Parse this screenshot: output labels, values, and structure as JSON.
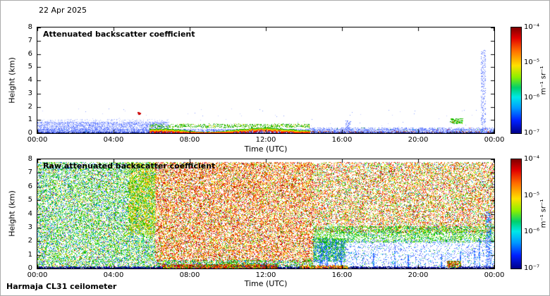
{
  "meta": {
    "date_label": "22 Apr 2025",
    "footer_label": "Harmaja CL31 ceilometer"
  },
  "colors": {
    "background": "#ffffff",
    "axis": "#000000",
    "jet_stops": [
      [
        "#7f0000",
        0
      ],
      [
        "#e10000",
        10
      ],
      [
        "#ff6d00",
        22
      ],
      [
        "#ffe000",
        36
      ],
      [
        "#8cf000",
        47
      ],
      [
        "#00d06c",
        57
      ],
      [
        "#00e8e8",
        66
      ],
      [
        "#009cff",
        76
      ],
      [
        "#0020ff",
        88
      ],
      [
        "#000089",
        100
      ]
    ]
  },
  "chart_data": [
    {
      "type": "heatmap",
      "title": "Attenuated backscatter coefficient",
      "xlabel": "Time (UTC)",
      "ylabel": "Height (km)",
      "x_ticks": [
        "00:00",
        "04:00",
        "08:00",
        "12:00",
        "16:00",
        "20:00",
        "00:00"
      ],
      "y_ticks": [
        "0",
        "1",
        "2",
        "3",
        "4",
        "5",
        "6",
        "7",
        "8"
      ],
      "x_range_hours": [
        0,
        24
      ],
      "y_range_km": [
        0,
        8
      ],
      "colorbar": {
        "ticks": [
          "10⁻⁴",
          "10⁻⁵",
          "10⁻⁶",
          "10⁻⁷"
        ],
        "unit": "m⁻¹ sr⁻¹",
        "scale": "log",
        "range": [
          "1e-7",
          "1e-4"
        ]
      },
      "features": [
        "Shallow aerosol layer below ~0.5 km all day (backscatter ~1e-6, blue)",
        "Deeper boundary-layer signal up to ~1 km from 00:00 to ~07:00",
        "Strong low cloud/fog layer at 0.2-0.5 km from ~06:00 to ~14:00 (~1e-4, red/yellow with green top)",
        "Isolated strong echo at ~1.5 km near 05:20",
        "Small cloud echo at ~1 km near 22:00 (green)",
        "Narrow vertical echo column up to ~6 km near 23:30 (blue)"
      ],
      "seed": 11,
      "render": {
        "layers": [
          {
            "type": "scatter",
            "x": [
              0,
              24
            ],
            "y": [
              0,
              0.32
            ],
            "count": 5200,
            "size": 1,
            "colors": [
              [
                "#4e6bff",
                3
              ],
              [
                "#7e93ff",
                3
              ],
              [
                "#b7c3ff",
                2.5
              ],
              [
                "#e2e8ff",
                1.5
              ],
              [
                "#28c8e8",
                0.25
              ]
            ]
          },
          {
            "type": "scatter",
            "x": [
              0,
              6.9
            ],
            "y": [
              0,
              0.85
            ],
            "count": 2600,
            "size": 1,
            "colors": [
              [
                "#5571ff",
                2.5
              ],
              [
                "#8ea1ff",
                2.5
              ],
              [
                "#c5cfff",
                2
              ]
            ]
          },
          {
            "type": "scatter",
            "x": [
              0,
              6.9
            ],
            "y": [
              0.5,
              1.05
            ],
            "count": 520,
            "size": 1,
            "colors": [
              [
                "#9fb0ff",
                1
              ],
              [
                "#d4dcff",
                1.2
              ]
            ]
          },
          {
            "type": "scatter",
            "x": [
              0,
              24
            ],
            "y": [
              0,
              0.07
            ],
            "count": 1700,
            "size": 1,
            "colors": [
              [
                "#1a2a9e",
                2
              ],
              [
                "#3347c4",
                1.5
              ],
              [
                "#000f5e",
                1
              ]
            ]
          },
          {
            "type": "cloudband",
            "x": [
              5.9,
              14.3
            ],
            "y_base": 0.16,
            "y_amp": 0.28,
            "thickness": 0.26,
            "band_colors": [
              "#00a800",
              "#7fd400",
              "#ffd800",
              "#ff7800",
              "#e00000"
            ]
          },
          {
            "type": "scatter",
            "x": [
              5.9,
              14.3
            ],
            "y": [
              0.42,
              0.7
            ],
            "count": 650,
            "size": 1,
            "colors": [
              [
                "#00a800",
                2
              ],
              [
                "#66cc00",
                1.5
              ],
              [
                "#ffd800",
                0.3
              ]
            ]
          },
          {
            "type": "scatter",
            "x": [
              14.3,
              24
            ],
            "y": [
              0.08,
              0.42
            ],
            "count": 820,
            "size": 1,
            "colors": [
              [
                "#4e6bff",
                2
              ],
              [
                "#8ea1ff",
                2
              ],
              [
                "#c5cfff",
                1.5
              ],
              [
                "#00a800",
                0.15
              ],
              [
                "#e00000",
                0.1
              ]
            ]
          },
          {
            "type": "scatter",
            "x": [
              14,
              24
            ],
            "y": [
              0.04,
              0.14
            ],
            "count": 130,
            "size": 1,
            "colors": [
              [
                "#c03000",
                1
              ],
              [
                "#7a2000",
                1
              ]
            ]
          },
          {
            "type": "scatter",
            "x": [
              5.25,
              5.45
            ],
            "y": [
              1.42,
              1.6
            ],
            "count": 10,
            "size": 2,
            "colors": [
              [
                "#cc0000",
                1
              ]
            ]
          },
          {
            "type": "scatter",
            "x": [
              21.7,
              22.35
            ],
            "y": [
              0.72,
              1.12
            ],
            "count": 150,
            "size": 1,
            "colors": [
              [
                "#00b400",
                3
              ],
              [
                "#66d800",
                2
              ],
              [
                "#ff5000",
                0.35
              ],
              [
                "#00d8d8",
                0.4
              ]
            ]
          },
          {
            "type": "scatter",
            "x": [
              23.3,
              23.55
            ],
            "y": [
              0,
              6.3
            ],
            "count": 300,
            "size": 1,
            "colors": [
              [
                "#4e6bff",
                2
              ],
              [
                "#7e93ff",
                2
              ],
              [
                "#b7c3ff",
                1.5
              ]
            ]
          },
          {
            "type": "scatter",
            "x": [
              16.2,
              16.45
            ],
            "y": [
              0,
              0.95
            ],
            "count": 70,
            "size": 1,
            "colors": [
              [
                "#4e6bff",
                2
              ],
              [
                "#8ea1ff",
                1.5
              ]
            ]
          },
          {
            "type": "scatter",
            "x": [
              0,
              24
            ],
            "y": [
              0.4,
              1.9
            ],
            "count": 70,
            "size": 1,
            "colors": [
              [
                "#8ea1ff",
                2
              ],
              [
                "#c5cfff",
                2
              ]
            ]
          }
        ]
      }
    },
    {
      "type": "heatmap",
      "title": "Raw attenuated backscatter coefficient",
      "xlabel": "Time (UTC)",
      "ylabel": "Height (km)",
      "x_ticks": [
        "00:00",
        "04:00",
        "08:00",
        "12:00",
        "16:00",
        "20:00",
        "00:00"
      ],
      "y_ticks": [
        "0",
        "1",
        "2",
        "3",
        "4",
        "5",
        "6",
        "7",
        "8"
      ],
      "x_range_hours": [
        0,
        24
      ],
      "y_range_km": [
        0,
        8
      ],
      "colorbar": {
        "ticks": [
          "10⁻⁴",
          "10⁻⁵",
          "10⁻⁶",
          "10⁻⁷"
        ],
        "unit": "m⁻¹ sr⁻¹",
        "scale": "log",
        "range": [
          "1e-7",
          "1e-4"
        ]
      },
      "features": [
        "Raw signal dominated by background noise over the whole height range",
        "Green/blue noise at all heights from 00:00 to ~06:00",
        "Strong red/orange noise (>=1e-5) from ~06:00 to ~14:00 above ~0.5 km",
        "Red/orange noise above ~2.5 km with green transition band from ~14:00 to 24:00",
        "Low-noise white region below ~2 km from ~14:00 to 24:00 with sparse blue speckles and thin vertical streaks",
        "Persistent dark-blue surface return line near 0 km; strong multicolour surface returns ~06:30-12:30",
        "Small strong echo near 22:00 below ~0.5 km"
      ],
      "seed": 99,
      "render": {
        "layers": [
          {
            "type": "scatter",
            "x": [
              0,
              6.2
            ],
            "y": [
              0,
              7.78
            ],
            "count": 15500,
            "size": 1,
            "colors": [
              [
                "#00b400",
                3
              ],
              [
                "#35d400",
                2
              ],
              [
                "#00d8b0",
                1.2
              ],
              [
                "#2e52ff",
                1.6
              ],
              [
                "#7fe000",
                1.2
              ],
              [
                "#ffe000",
                1
              ],
              [
                "#ff8c00",
                0.5
              ],
              [
                "#e00000",
                0.35
              ],
              [
                "#009cff",
                0.8
              ]
            ]
          },
          {
            "type": "scatter",
            "x": [
              4.8,
              6.2
            ],
            "y": [
              2.5,
              7.78
            ],
            "count": 2300,
            "size": 1,
            "colors": [
              [
                "#ffe000",
                1.5
              ],
              [
                "#ff8c00",
                1
              ],
              [
                "#7fe000",
                1.5
              ],
              [
                "#00b400",
                1
              ]
            ]
          },
          {
            "type": "scatter",
            "x": [
              6.2,
              14.5
            ],
            "y": [
              0.55,
              7.78
            ],
            "count": 21000,
            "size": 1,
            "colors": [
              [
                "#e00000",
                3
              ],
              [
                "#ff5a00",
                2.5
              ],
              [
                "#ff9c00",
                2
              ],
              [
                "#ffe000",
                1.5
              ],
              [
                "#7fe000",
                1
              ],
              [
                "#00b400",
                1
              ],
              [
                "#2e52ff",
                0.4
              ],
              [
                "#8c0000",
                0.8
              ]
            ]
          },
          {
            "type": "scatter",
            "x": [
              6.2,
              14.5
            ],
            "y": [
              0,
              0.6
            ],
            "count": 2300,
            "size": 1,
            "colors": [
              [
                "#00b400",
                2
              ],
              [
                "#35d400",
                1.5
              ],
              [
                "#2e52ff",
                1
              ],
              [
                "#ffe000",
                0.8
              ],
              [
                "#e00000",
                0.8
              ],
              [
                "#009cff",
                0.6
              ]
            ]
          },
          {
            "type": "scatter",
            "x": [
              14.5,
              24
            ],
            "y": [
              2.6,
              7.78
            ],
            "count": 13500,
            "size": 1,
            "colors": [
              [
                "#e00000",
                2.5
              ],
              [
                "#ff5a00",
                2
              ],
              [
                "#ff9c00",
                1.6
              ],
              [
                "#ffe000",
                1.4
              ],
              [
                "#7fe000",
                1.2
              ],
              [
                "#00b400",
                1.6
              ],
              [
                "#00d8b0",
                0.5
              ],
              [
                "#2e52ff",
                0.6
              ]
            ]
          },
          {
            "type": "scatter",
            "x": [
              14.5,
              24
            ],
            "y": [
              1.9,
              3.1
            ],
            "count": 3300,
            "size": 1,
            "colors": [
              [
                "#00b400",
                2.5
              ],
              [
                "#35d400",
                2
              ],
              [
                "#7fe000",
                1.2
              ],
              [
                "#00d8b0",
                0.8
              ],
              [
                "#2e52ff",
                0.7
              ],
              [
                "#ffe000",
                0.5
              ]
            ]
          },
          {
            "type": "scatter",
            "x": [
              14.5,
              16.2
            ],
            "y": [
              0.5,
              2.2
            ],
            "count": 1400,
            "size": 1,
            "colors": [
              [
                "#00b400",
                2
              ],
              [
                "#35d400",
                1.5
              ],
              [
                "#2e52ff",
                1.2
              ],
              [
                "#009cff",
                0.8
              ]
            ]
          },
          {
            "type": "scatter",
            "x": [
              14.5,
              24
            ],
            "y": [
              0.12,
              2.1
            ],
            "count": 1700,
            "size": 1,
            "colors": [
              [
                "#2e52ff",
                2.5
              ],
              [
                "#009cff",
                1
              ],
              [
                "#7f9dff",
                1.5
              ],
              [
                "#00b400",
                0.3
              ],
              [
                "#00d8b0",
                0.3
              ]
            ]
          },
          {
            "type": "streaks",
            "x": [
              14.8,
              23.9
            ],
            "count": 12,
            "base": 0.1,
            "hmin": 0.9,
            "hmax": 2.4,
            "dots": 70,
            "colors": [
              [
                "#2e52ff",
                2
              ],
              [
                "#009cff",
                1
              ],
              [
                "#7f9dff",
                1
              ]
            ]
          },
          {
            "type": "scatter",
            "x": [
              23.55,
              23.85
            ],
            "y": [
              0.1,
              4.2
            ],
            "count": 330,
            "size": 1,
            "colors": [
              [
                "#2e52ff",
                2
              ],
              [
                "#009cff",
                1
              ],
              [
                "#7f9dff",
                1
              ]
            ]
          },
          {
            "type": "scatter",
            "x": [
              0,
              24
            ],
            "y": [
              0,
              0.12
            ],
            "count": 2700,
            "size": 1,
            "colors": [
              [
                "#000080",
                3
              ],
              [
                "#2030c0",
                1.5
              ],
              [
                "#000050",
                1.5
              ]
            ]
          },
          {
            "type": "scatter",
            "x": [
              6.6,
              12.6
            ],
            "y": [
              0,
              0.3
            ],
            "count": 2500,
            "size": 1,
            "colors": [
              [
                "#e00000",
                3
              ],
              [
                "#ff8c00",
                2
              ],
              [
                "#ffe000",
                1.5
              ],
              [
                "#00b400",
                2
              ],
              [
                "#2e52ff",
                1
              ],
              [
                "#8c0000",
                1
              ]
            ]
          },
          {
            "type": "scatter",
            "x": [
              13.8,
              16.3
            ],
            "y": [
              0,
              0.22
            ],
            "count": 400,
            "size": 1,
            "colors": [
              [
                "#ff8c00",
                2
              ],
              [
                "#e00000",
                1.2
              ],
              [
                "#00b400",
                0.6
              ],
              [
                "#ffe000",
                0.8
              ]
            ]
          },
          {
            "type": "scatter",
            "x": [
              21.5,
              22.25
            ],
            "y": [
              0.08,
              0.55
            ],
            "count": 320,
            "size": 1,
            "colors": [
              [
                "#e00000",
                2
              ],
              [
                "#ff8c00",
                1.5
              ],
              [
                "#00b400",
                2
              ],
              [
                "#ffe000",
                1
              ],
              [
                "#2e52ff",
                0.6
              ]
            ]
          }
        ]
      }
    }
  ]
}
